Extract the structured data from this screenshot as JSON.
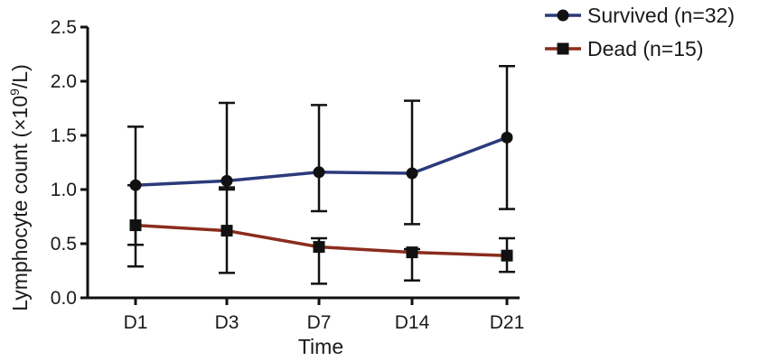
{
  "chart_data": {
    "type": "line",
    "title": "",
    "xlabel": "Time",
    "ylabel_main": "Lymphocyte count (×10",
    "ylabel_sup": "9",
    "ylabel_tail": "/L)",
    "categories": [
      "D1",
      "D3",
      "D7",
      "D14",
      "D21"
    ],
    "ylim": [
      0,
      2.5
    ],
    "yticks": [
      0.0,
      0.5,
      1.0,
      1.5,
      2.0,
      2.5
    ],
    "ytick_labels": [
      "0.0",
      "0.5",
      "1.0",
      "1.5",
      "2.0",
      "2.5"
    ],
    "grid": false,
    "legend_position": "top-right",
    "series": [
      {
        "name": "Survived (n=32)",
        "color": "#2b3a7a",
        "marker": "circle",
        "values": [
          1.04,
          1.08,
          1.16,
          1.15,
          1.48
        ],
        "err_low": [
          0.49,
          1.0,
          0.8,
          0.68,
          0.82
        ],
        "err_high": [
          1.58,
          1.8,
          1.78,
          1.82,
          2.14
        ]
      },
      {
        "name": "Dead (n=15)",
        "color": "#8b2c1e",
        "marker": "square",
        "values": [
          0.67,
          0.62,
          0.47,
          0.42,
          0.39
        ],
        "err_low": [
          0.29,
          0.23,
          0.13,
          0.16,
          0.24
        ],
        "err_high": [
          1.04,
          1.02,
          0.55,
          0.45,
          0.55
        ]
      }
    ]
  }
}
